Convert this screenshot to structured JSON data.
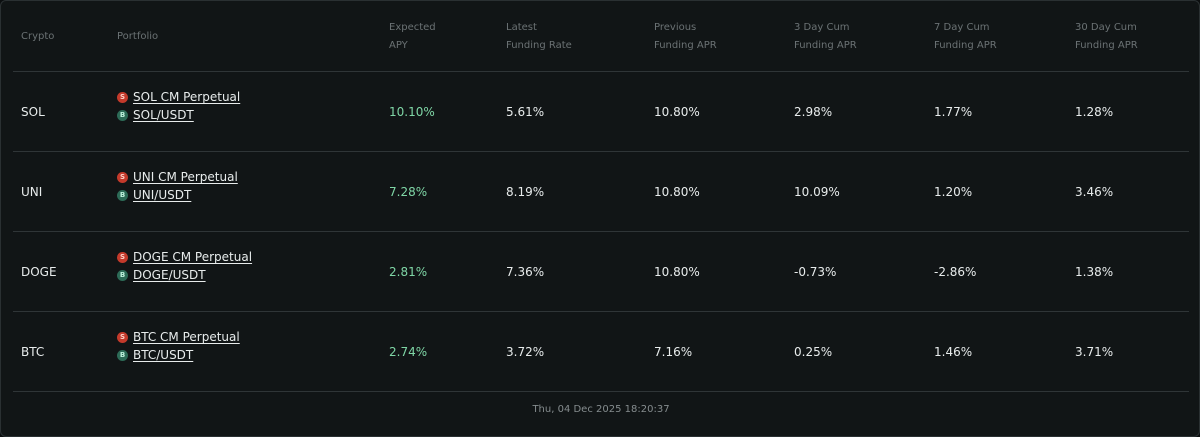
{
  "table": {
    "headers": {
      "crypto": "Crypto",
      "portfolio": "Portfolio",
      "expected_apy": [
        "Expected",
        "APY"
      ],
      "latest_funding_rate": [
        "Latest",
        "Funding Rate"
      ],
      "previous_funding_apr": [
        "Previous",
        "Funding APR"
      ],
      "cum_3day": [
        "3 Day Cum",
        "Funding APR"
      ],
      "cum_7day": [
        "7 Day Cum",
        "Funding APR"
      ],
      "cum_30day": [
        "30 Day Cum",
        "Funding APR"
      ]
    },
    "rows": [
      {
        "crypto": "SOL",
        "perp_badge": "S",
        "perp_label": "SOL CM Perpetual",
        "spot_badge": "B",
        "spot_label": "SOL/USDT",
        "expected_apy": "10.10%",
        "latest_funding_rate": "5.61%",
        "previous_funding_apr": "10.80%",
        "cum_3day": "2.98%",
        "cum_7day": "1.77%",
        "cum_30day": "1.28%"
      },
      {
        "crypto": "UNI",
        "perp_badge": "S",
        "perp_label": "UNI CM Perpetual",
        "spot_badge": "B",
        "spot_label": "UNI/USDT",
        "expected_apy": "7.28%",
        "latest_funding_rate": "8.19%",
        "previous_funding_apr": "10.80%",
        "cum_3day": "10.09%",
        "cum_7day": "1.20%",
        "cum_30day": "3.46%"
      },
      {
        "crypto": "DOGE",
        "perp_badge": "S",
        "perp_label": "DOGE CM Perpetual",
        "spot_badge": "B",
        "spot_label": "DOGE/USDT",
        "expected_apy": "2.81%",
        "latest_funding_rate": "7.36%",
        "previous_funding_apr": "10.80%",
        "cum_3day": "-0.73%",
        "cum_7day": "-2.86%",
        "cum_30day": "1.38%"
      },
      {
        "crypto": "BTC",
        "perp_badge": "S",
        "perp_label": "BTC CM Perpetual",
        "spot_badge": "B",
        "spot_label": "BTC/USDT",
        "expected_apy": "2.74%",
        "latest_funding_rate": "3.72%",
        "previous_funding_apr": "7.16%",
        "cum_3day": "0.25%",
        "cum_7day": "1.46%",
        "cum_30day": "3.71%"
      }
    ]
  },
  "footer": {
    "timestamp": "Thu, 04 Dec 2025 18:20:37"
  },
  "colors": {
    "background": "#111516",
    "apy_positive": "#7fd6a6",
    "perp_badge": "#c43a2b",
    "spot_badge": "#2d6b57"
  }
}
